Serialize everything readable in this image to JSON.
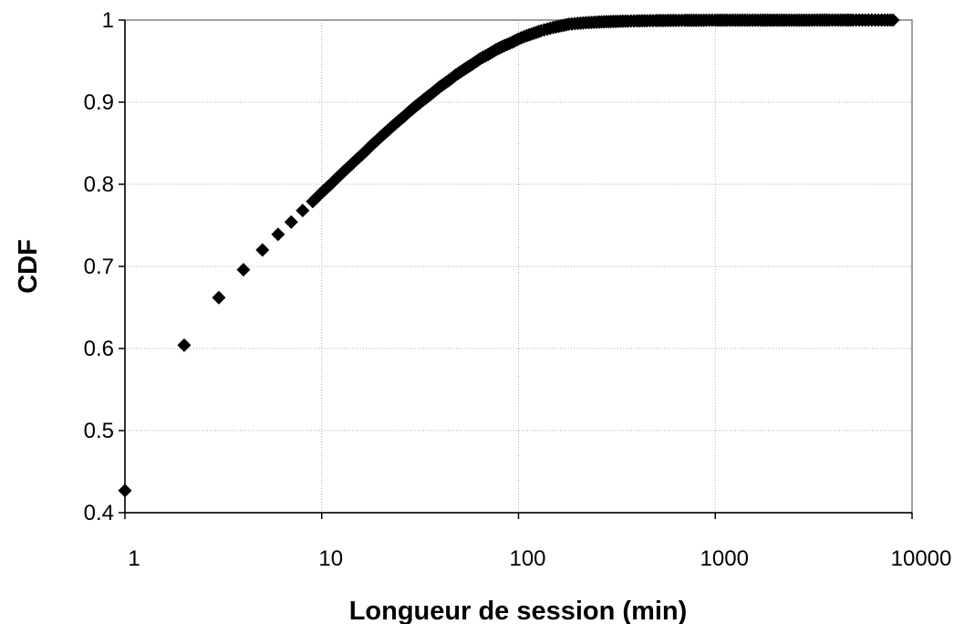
{
  "chart_data": {
    "type": "scatter",
    "title": "",
    "xlabel": "Longueur de session (min)",
    "ylabel": "CDF",
    "xscale": "log",
    "xlim": [
      1,
      10000
    ],
    "ylim": [
      0.4,
      1
    ],
    "x_ticks": [
      1,
      10,
      100,
      1000,
      10000
    ],
    "x_tick_labels": [
      "1",
      "10",
      "100",
      "1000",
      "10000"
    ],
    "y_ticks": [
      0.4,
      0.5,
      0.6,
      0.7,
      0.8,
      0.9,
      1
    ],
    "y_tick_labels": [
      "0.4",
      "0.5",
      "0.6",
      "0.7",
      "0.8",
      "0.9",
      "1"
    ],
    "grid": "major gridlines on both axes",
    "legend": "none",
    "marker": "diamond",
    "marker_color": "#000000",
    "series": [
      {
        "x": [
          1,
          2,
          3,
          4,
          5,
          6,
          7,
          8,
          9,
          10,
          11,
          12,
          13,
          14,
          15,
          16,
          17,
          18,
          19,
          20,
          22,
          24,
          26,
          28,
          30,
          33,
          36,
          40,
          44,
          48,
          53,
          58,
          64,
          70,
          77,
          85,
          93,
          100,
          110,
          120,
          130,
          140,
          150,
          165,
          180,
          200,
          220,
          250,
          280,
          320,
          360,
          400,
          450,
          500,
          560,
          630,
          700,
          800,
          900,
          1000,
          1150,
          1300,
          1500,
          1700,
          2000,
          2300,
          2600,
          3000,
          3400,
          3800,
          4200,
          4600,
          5000,
          5400,
          6000,
          6500,
          7000,
          7500,
          8000
        ],
        "y": [
          0.427,
          0.604,
          0.662,
          0.696,
          0.72,
          0.739,
          0.754,
          0.768,
          0.779,
          0.79,
          0.799,
          0.808,
          0.816,
          0.823,
          0.83,
          0.836,
          0.842,
          0.848,
          0.853,
          0.858,
          0.867,
          0.875,
          0.882,
          0.889,
          0.895,
          0.903,
          0.91,
          0.919,
          0.926,
          0.933,
          0.94,
          0.946,
          0.953,
          0.958,
          0.964,
          0.969,
          0.973,
          0.977,
          0.981,
          0.984,
          0.987,
          0.989,
          0.991,
          0.993,
          0.995,
          0.996,
          0.9968,
          0.9975,
          0.998,
          0.9985,
          0.9988,
          0.999,
          0.9992,
          0.9994,
          0.9995,
          0.9996,
          0.9997,
          0.9997,
          0.9998,
          0.9998,
          0.9998,
          0.9999,
          0.9999,
          0.9999,
          0.9999,
          0.9999,
          0.9999,
          0.9999,
          1,
          1,
          1,
          1,
          1,
          1,
          1,
          1,
          1,
          1,
          1
        ]
      }
    ]
  }
}
